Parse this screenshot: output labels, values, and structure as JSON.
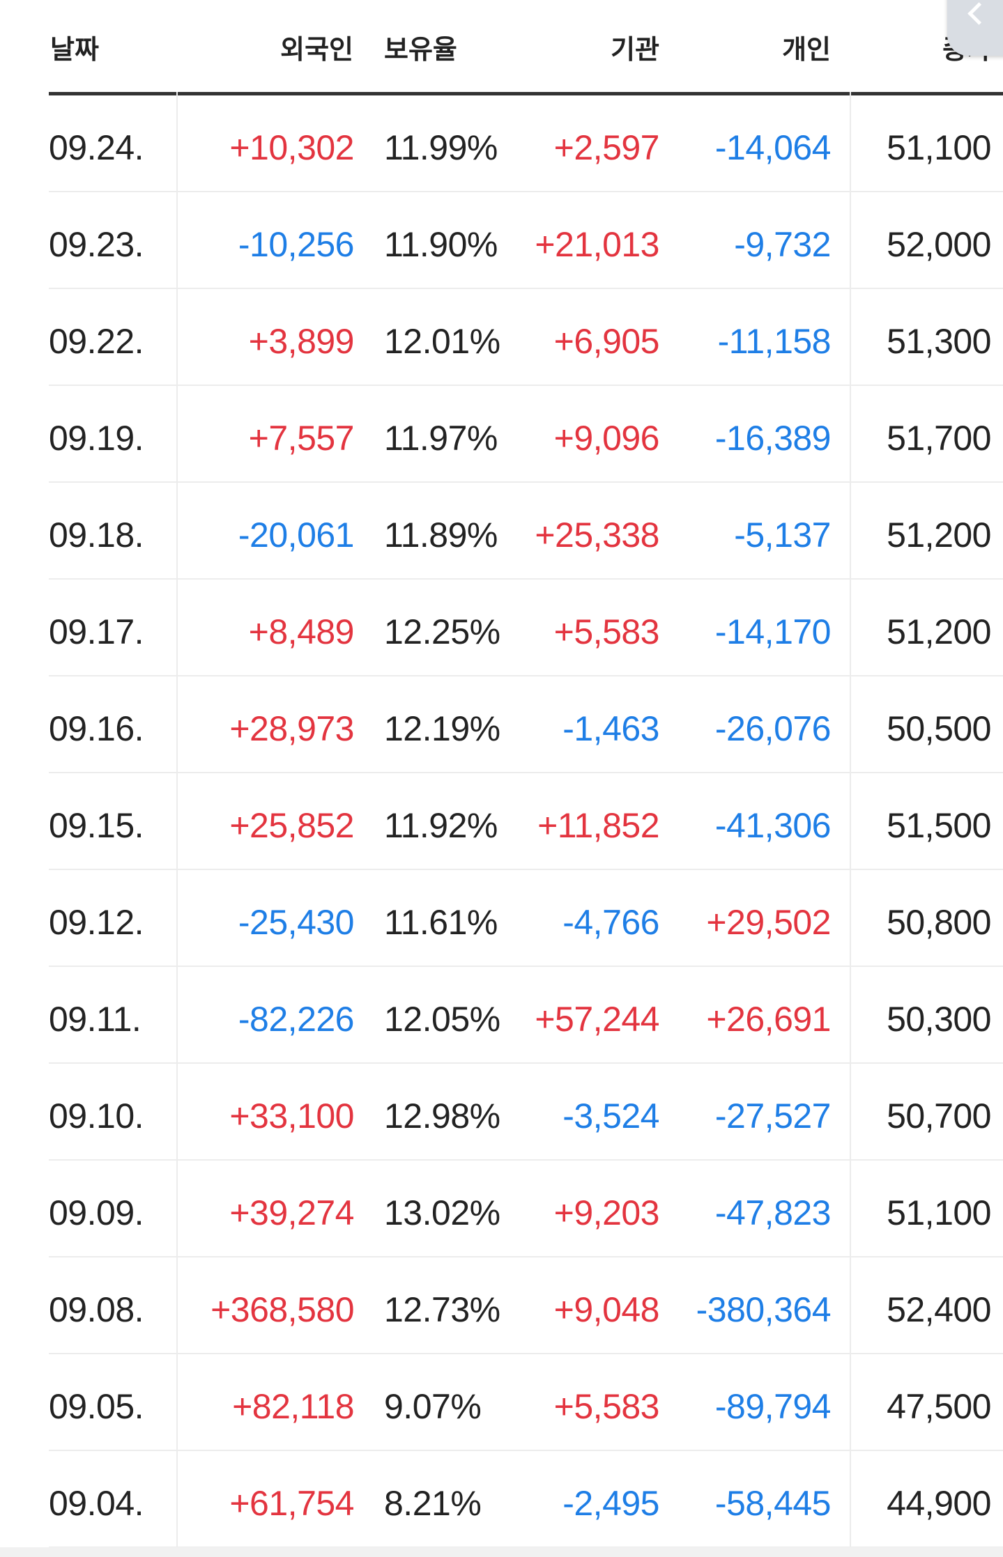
{
  "table": {
    "headers": {
      "date": "날짜",
      "foreign": "외국인",
      "holding": "보유율",
      "institution": "기관",
      "individual": "개인",
      "close": "종가"
    },
    "rows": [
      {
        "date": "09.24.",
        "foreign": "+10,302",
        "holding": "11.99%",
        "institution": "+2,597",
        "individual": "-14,064",
        "close": "51,100"
      },
      {
        "date": "09.23.",
        "foreign": "-10,256",
        "holding": "11.90%",
        "institution": "+21,013",
        "individual": "-9,732",
        "close": "52,000"
      },
      {
        "date": "09.22.",
        "foreign": "+3,899",
        "holding": "12.01%",
        "institution": "+6,905",
        "individual": "-11,158",
        "close": "51,300"
      },
      {
        "date": "09.19.",
        "foreign": "+7,557",
        "holding": "11.97%",
        "institution": "+9,096",
        "individual": "-16,389",
        "close": "51,700"
      },
      {
        "date": "09.18.",
        "foreign": "-20,061",
        "holding": "11.89%",
        "institution": "+25,338",
        "individual": "-5,137",
        "close": "51,200"
      },
      {
        "date": "09.17.",
        "foreign": "+8,489",
        "holding": "12.25%",
        "institution": "+5,583",
        "individual": "-14,170",
        "close": "51,200"
      },
      {
        "date": "09.16.",
        "foreign": "+28,973",
        "holding": "12.19%",
        "institution": "-1,463",
        "individual": "-26,076",
        "close": "50,500"
      },
      {
        "date": "09.15.",
        "foreign": "+25,852",
        "holding": "11.92%",
        "institution": "+11,852",
        "individual": "-41,306",
        "close": "51,500"
      },
      {
        "date": "09.12.",
        "foreign": "-25,430",
        "holding": "11.61%",
        "institution": "-4,766",
        "individual": "+29,502",
        "close": "50,800"
      },
      {
        "date": "09.11.",
        "foreign": "-82,226",
        "holding": "12.05%",
        "institution": "+57,244",
        "individual": "+26,691",
        "close": "50,300"
      },
      {
        "date": "09.10.",
        "foreign": "+33,100",
        "holding": "12.98%",
        "institution": "-3,524",
        "individual": "-27,527",
        "close": "50,700"
      },
      {
        "date": "09.09.",
        "foreign": "+39,274",
        "holding": "13.02%",
        "institution": "+9,203",
        "individual": "-47,823",
        "close": "51,100"
      },
      {
        "date": "09.08.",
        "foreign": "+368,580",
        "holding": "12.73%",
        "institution": "+9,048",
        "individual": "-380,364",
        "close": "52,400"
      },
      {
        "date": "09.05.",
        "foreign": "+82,118",
        "holding": "9.07%",
        "institution": "+5,583",
        "individual": "-89,794",
        "close": "47,500"
      },
      {
        "date": "09.04.",
        "foreign": "+61,754",
        "holding": "8.21%",
        "institution": "-2,495",
        "individual": "-58,445",
        "close": "44,900"
      }
    ]
  },
  "colors": {
    "positive": "#e3343f",
    "negative": "#1e7ee6",
    "text": "#222222",
    "divider": "#ececec"
  },
  "icons": {
    "corner_button": "back-chevron-icon"
  }
}
